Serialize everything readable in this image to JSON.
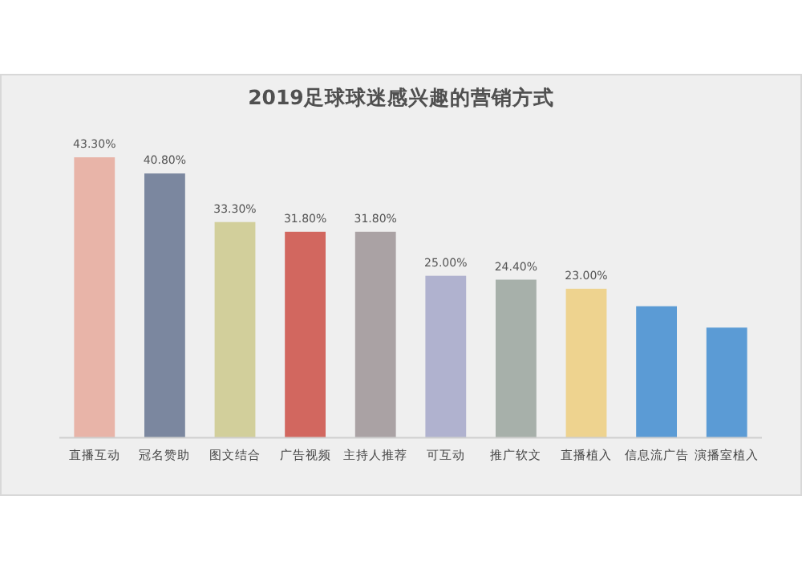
{
  "chart_data": {
    "type": "bar",
    "title": "2019足球球迷感兴趣的营销方式",
    "categories": [
      "直播互动",
      "冠名赞助",
      "图文结合",
      "广告视频",
      "主持人推荐",
      "可互动",
      "推广软文",
      "直播植入",
      "信息流广告",
      "演播室植入"
    ],
    "values": [
      43.3,
      40.8,
      33.3,
      31.8,
      31.8,
      25.0,
      24.4,
      23.0,
      20.3,
      17.0
    ],
    "colors": [
      "#e8b4a8",
      "#7b879f",
      "#d2cf9b",
      "#d2675f",
      "#aaa2a4",
      "#b0b2cf",
      "#a7b0aa",
      "#eed38f",
      "#5b9bd5",
      "#5b9bd5"
    ],
    "value_labels": [
      "43.30%",
      "40.80%",
      "33.30%",
      "31.80%",
      "31.80%",
      "25.00%",
      "24.40%",
      "23.00%",
      null,
      null
    ]
  }
}
